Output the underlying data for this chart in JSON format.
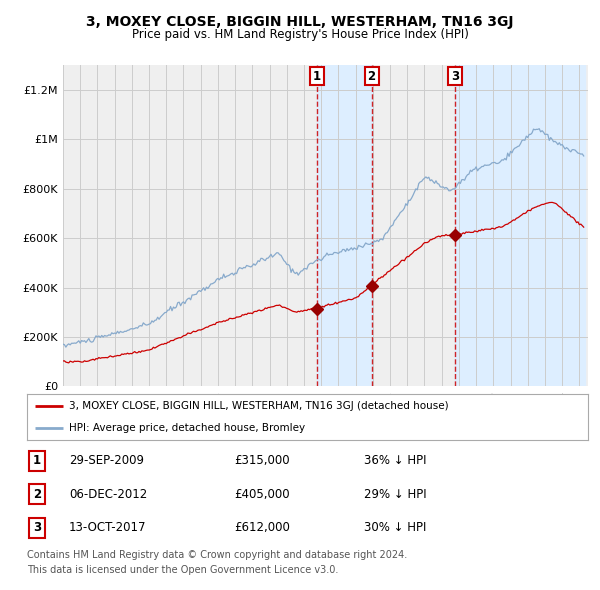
{
  "title": "3, MOXEY CLOSE, BIGGIN HILL, WESTERHAM, TN16 3GJ",
  "subtitle": "Price paid vs. HM Land Registry's House Price Index (HPI)",
  "ylim": [
    0,
    1300000
  ],
  "yticks": [
    0,
    200000,
    400000,
    600000,
    800000,
    1000000,
    1200000
  ],
  "ytick_labels": [
    "£0",
    "£200K",
    "£400K",
    "£600K",
    "£800K",
    "£1M",
    "£1.2M"
  ],
  "sale_prices": [
    315000,
    405000,
    612000
  ],
  "sale_labels": [
    "1",
    "2",
    "3"
  ],
  "legend_red_label": "3, MOXEY CLOSE, BIGGIN HILL, WESTERHAM, TN16 3GJ (detached house)",
  "legend_blue_label": "HPI: Average price, detached house, Bromley",
  "footer1": "Contains HM Land Registry data © Crown copyright and database right 2024.",
  "footer2": "This data is licensed under the Open Government Licence v3.0.",
  "dates_display": [
    "29-SEP-2009",
    "06-DEC-2012",
    "13-OCT-2017"
  ],
  "prices_display": [
    "£315,000",
    "£405,000",
    "£612,000"
  ],
  "pct_display": [
    "36% ↓ HPI",
    "29% ↓ HPI",
    "30% ↓ HPI"
  ],
  "red_color": "#cc0000",
  "blue_color": "#88aacc",
  "shade_color": "#ddeeff",
  "grid_color": "#cccccc",
  "bg_color": "#efefef"
}
